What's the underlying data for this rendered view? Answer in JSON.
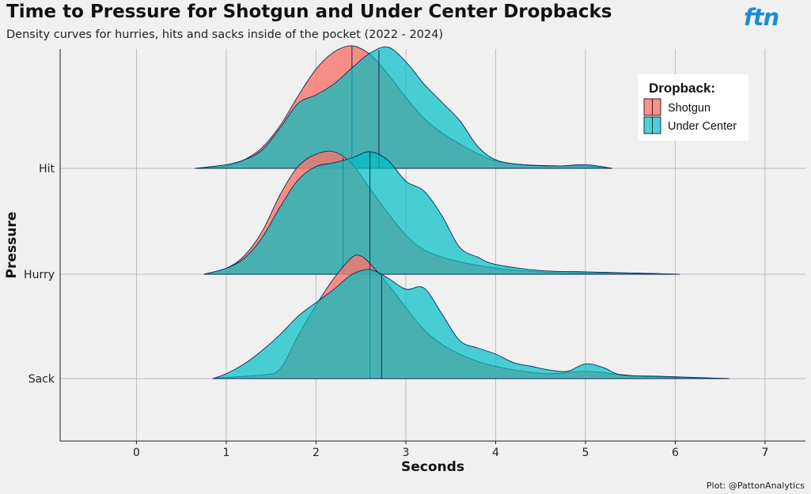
{
  "title": "Time to Pressure for Shotgun and Under Center Dropbacks",
  "subtitle": "Density curves for hurries, hits and sacks inside of the pocket (2022 - 2024)",
  "logo": "ftn",
  "caption": "Plot: @PattonAnalytics",
  "chart_data": {
    "type": "ridgeline-density",
    "xlabel": "Seconds",
    "ylabel": "Pressure",
    "xlim": [
      -0.85,
      7.45
    ],
    "xticks": [
      0,
      1,
      2,
      3,
      4,
      5,
      6,
      7
    ],
    "categories": [
      "Sack",
      "Hurry",
      "Hit"
    ],
    "legend": {
      "title": "Dropback:",
      "position": "top-right",
      "entries": [
        {
          "name": "Shotgun",
          "color": "#f8766d"
        },
        {
          "name": "Under Center",
          "color": "#00bfc4"
        }
      ]
    },
    "ridges": [
      {
        "category": "Hit",
        "series": [
          {
            "name": "Shotgun",
            "median": 2.4,
            "points": [
              [
                0.65,
                0
              ],
              [
                1.0,
                0.02
              ],
              [
                1.2,
                0.07
              ],
              [
                1.4,
                0.17
              ],
              [
                1.6,
                0.35
              ],
              [
                1.8,
                0.59
              ],
              [
                2.0,
                0.81
              ],
              [
                2.2,
                0.95
              ],
              [
                2.4,
                1.0
              ],
              [
                2.6,
                0.93
              ],
              [
                2.8,
                0.77
              ],
              [
                3.0,
                0.58
              ],
              [
                3.2,
                0.41
              ],
              [
                3.4,
                0.29
              ],
              [
                3.6,
                0.2
              ],
              [
                3.8,
                0.12
              ],
              [
                4.0,
                0.06
              ],
              [
                4.3,
                0.03
              ],
              [
                4.7,
                0.02
              ],
              [
                5.0,
                0.02
              ],
              [
                5.3,
                0
              ]
            ]
          },
          {
            "name": "Under Center",
            "median": 2.7,
            "points": [
              [
                0.65,
                0
              ],
              [
                1.0,
                0.03
              ],
              [
                1.2,
                0.07
              ],
              [
                1.4,
                0.15
              ],
              [
                1.6,
                0.33
              ],
              [
                1.8,
                0.53
              ],
              [
                2.0,
                0.6
              ],
              [
                2.2,
                0.69
              ],
              [
                2.4,
                0.82
              ],
              [
                2.6,
                0.94
              ],
              [
                2.8,
                0.99
              ],
              [
                3.0,
                0.87
              ],
              [
                3.2,
                0.69
              ],
              [
                3.4,
                0.54
              ],
              [
                3.6,
                0.39
              ],
              [
                3.8,
                0.18
              ],
              [
                4.0,
                0.07
              ],
              [
                4.3,
                0.03
              ],
              [
                4.7,
                0.02
              ],
              [
                5.0,
                0.03
              ],
              [
                5.3,
                0
              ]
            ]
          }
        ]
      },
      {
        "category": "Hurry",
        "series": [
          {
            "name": "Shotgun",
            "median": 2.3,
            "points": [
              [
                0.75,
                0
              ],
              [
                1.0,
                0.05
              ],
              [
                1.2,
                0.15
              ],
              [
                1.4,
                0.35
              ],
              [
                1.6,
                0.65
              ],
              [
                1.8,
                0.88
              ],
              [
                2.0,
                0.98
              ],
              [
                2.2,
                1.0
              ],
              [
                2.4,
                0.9
              ],
              [
                2.6,
                0.7
              ],
              [
                2.8,
                0.5
              ],
              [
                3.0,
                0.32
              ],
              [
                3.2,
                0.2
              ],
              [
                3.5,
                0.12
              ],
              [
                4.0,
                0.05
              ],
              [
                4.5,
                0.02
              ],
              [
                5.0,
                0.01
              ],
              [
                5.5,
                0.01
              ],
              [
                6.05,
                0
              ]
            ]
          },
          {
            "name": "Under Center",
            "median": 2.6,
            "points": [
              [
                0.75,
                0
              ],
              [
                1.0,
                0.05
              ],
              [
                1.2,
                0.13
              ],
              [
                1.4,
                0.3
              ],
              [
                1.6,
                0.55
              ],
              [
                1.8,
                0.77
              ],
              [
                2.0,
                0.88
              ],
              [
                2.2,
                0.91
              ],
              [
                2.4,
                0.95
              ],
              [
                2.6,
                1.0
              ],
              [
                2.8,
                0.93
              ],
              [
                3.0,
                0.76
              ],
              [
                3.2,
                0.68
              ],
              [
                3.4,
                0.48
              ],
              [
                3.6,
                0.22
              ],
              [
                3.8,
                0.14
              ],
              [
                4.0,
                0.08
              ],
              [
                4.5,
                0.03
              ],
              [
                5.0,
                0.02
              ],
              [
                5.5,
                0.01
              ],
              [
                6.05,
                0
              ]
            ]
          }
        ]
      },
      {
        "category": "Sack",
        "series": [
          {
            "name": "Shotgun",
            "median": 2.6,
            "points": [
              [
                0.85,
                0
              ],
              [
                1.0,
                0.01
              ],
              [
                1.4,
                0.03
              ],
              [
                1.6,
                0.08
              ],
              [
                1.8,
                0.35
              ],
              [
                2.0,
                0.6
              ],
              [
                2.2,
                0.82
              ],
              [
                2.4,
                0.99
              ],
              [
                2.5,
                1.0
              ],
              [
                2.6,
                0.94
              ],
              [
                2.8,
                0.77
              ],
              [
                3.0,
                0.58
              ],
              [
                3.2,
                0.4
              ],
              [
                3.4,
                0.28
              ],
              [
                3.6,
                0.2
              ],
              [
                3.8,
                0.14
              ],
              [
                4.0,
                0.1
              ],
              [
                4.3,
                0.06
              ],
              [
                4.6,
                0.04
              ],
              [
                5.0,
                0.06
              ],
              [
                5.3,
                0.04
              ],
              [
                5.6,
                0.02
              ],
              [
                6.0,
                0.01
              ],
              [
                6.6,
                0
              ]
            ]
          },
          {
            "name": "Under Center",
            "median": 2.73,
            "points": [
              [
                0.85,
                0
              ],
              [
                1.0,
                0.04
              ],
              [
                1.2,
                0.12
              ],
              [
                1.4,
                0.23
              ],
              [
                1.6,
                0.36
              ],
              [
                1.8,
                0.51
              ],
              [
                2.0,
                0.62
              ],
              [
                2.2,
                0.73
              ],
              [
                2.4,
                0.85
              ],
              [
                2.6,
                0.89
              ],
              [
                2.8,
                0.82
              ],
              [
                3.0,
                0.73
              ],
              [
                3.2,
                0.74
              ],
              [
                3.4,
                0.53
              ],
              [
                3.6,
                0.31
              ],
              [
                3.8,
                0.25
              ],
              [
                4.0,
                0.2
              ],
              [
                4.2,
                0.13
              ],
              [
                4.4,
                0.1
              ],
              [
                4.6,
                0.07
              ],
              [
                4.8,
                0.06
              ],
              [
                5.0,
                0.12
              ],
              [
                5.2,
                0.09
              ],
              [
                5.4,
                0.03
              ],
              [
                5.8,
                0.02
              ],
              [
                6.2,
                0.01
              ],
              [
                6.6,
                0
              ]
            ]
          }
        ]
      }
    ]
  }
}
